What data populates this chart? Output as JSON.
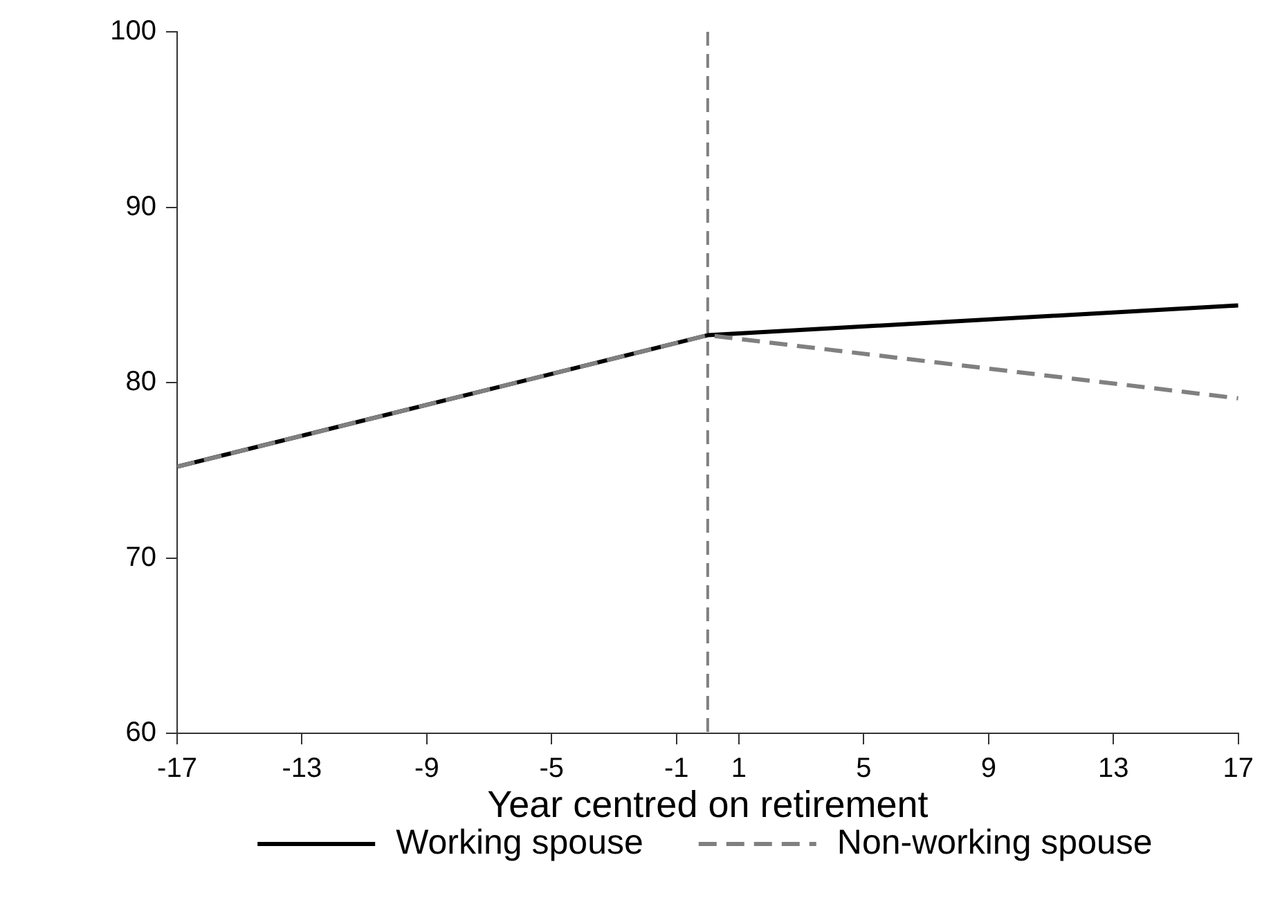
{
  "chart_data": {
    "type": "line",
    "xlabel": "Year centred on retirement",
    "x": [
      -17,
      0,
      17
    ],
    "series": [
      {
        "name": "Working spouse",
        "color": "#000000",
        "values": [
          75.2,
          82.7,
          84.4
        ],
        "line_style": "solid"
      },
      {
        "name": "Non-working spouse",
        "color": "#808080",
        "values": [
          75.2,
          82.7,
          79.1
        ],
        "line_style": "dashed"
      }
    ],
    "xlim": [
      -17,
      17
    ],
    "xticks": [
      -17,
      -13,
      -9,
      -5,
      -1,
      1,
      5,
      9,
      13,
      17
    ],
    "ylim": [
      60,
      100
    ],
    "yticks": [
      60,
      70,
      80,
      90,
      100
    ],
    "ref_lines": [
      {
        "axis": "x",
        "value": 0,
        "color": "#808080",
        "line_style": "dashed"
      }
    ],
    "legend": "bottom",
    "marker": "none"
  }
}
